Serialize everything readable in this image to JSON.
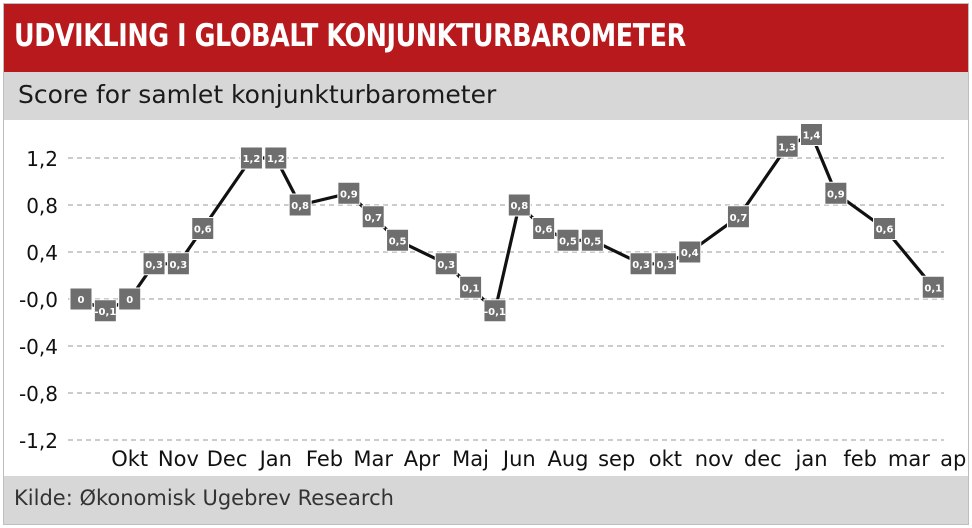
{
  "header": {
    "title": "UDVIKLING I GLOBALT KONJUNKTURBAROMETER",
    "subtitle": "Score for samlet konjunkturbarometer"
  },
  "footer": {
    "source": "Kilde: Økonomisk Ugebrev Research"
  },
  "colors": {
    "banner": "#b7191c",
    "band": "#d7d7d7",
    "line": "#111111",
    "marker": "#6e6e6e"
  },
  "chart_data": {
    "type": "line",
    "x": [
      "",
      "",
      "Okt",
      "",
      "Nov",
      "",
      "Dec",
      "",
      "Jan",
      "",
      "Feb",
      "",
      "Mar",
      "",
      "Apr",
      "",
      "Maj",
      "",
      "Jun",
      "",
      "Aug",
      "",
      "sep",
      "",
      "okt",
      "",
      "nov",
      "",
      "dec",
      "",
      "jan",
      "",
      "feb",
      "",
      "mar",
      "",
      "apr"
    ],
    "series": [
      {
        "values": [
          0,
          -0.1,
          0,
          0.3,
          0.3,
          0.6,
          null,
          1.2,
          1.2,
          0.8,
          null,
          0.9,
          0.7,
          0.5,
          null,
          0.3,
          0.1,
          -0.1,
          0.8,
          0.6,
          0.5,
          0.5,
          null,
          0.3,
          0.3,
          0.4,
          null,
          0.7,
          null,
          1.3,
          1.4,
          0.9,
          null,
          0.6,
          null,
          0.1,
          null
        ],
        "labels": [
          "0",
          "-0,1",
          "0",
          "0,3",
          "0,3",
          "0,6",
          "",
          "1,2",
          "1,2",
          "0,8",
          "",
          "0,9",
          "0,7",
          "0,5",
          "",
          "0,3",
          "0,1",
          "-0,1",
          "0,8",
          "0,6",
          "0,5",
          "0,5",
          "",
          "0,3",
          "0,3",
          "0,4",
          "",
          "0,7",
          "",
          "1,3",
          "1,4",
          "0,9",
          "",
          "0,6",
          "",
          "0,1",
          ""
        ]
      }
    ],
    "yticks": [
      1.2,
      0.8,
      0.4,
      0,
      -0.4,
      -0.8,
      -1.2
    ],
    "ytick_labels": [
      "1,2",
      "0,8",
      "0,4",
      "-0,0",
      "-0,4",
      "-0,8",
      "-1,2"
    ],
    "ylim": [
      -1.2,
      1.45
    ],
    "grid": true
  }
}
